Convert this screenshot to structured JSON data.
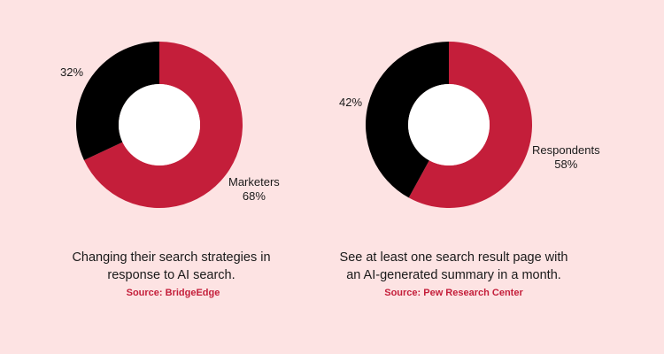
{
  "colors": {
    "background": "#fde3e3",
    "red": "#c41e3a",
    "black": "#000000",
    "hole": "#ffffff",
    "source_text": "#c41e3a"
  },
  "chart_data": [
    {
      "type": "pie",
      "title": "",
      "slices": [
        {
          "label": "Marketers",
          "value": 68,
          "display": "68%",
          "color": "#c41e3a"
        },
        {
          "label": "",
          "value": 32,
          "display": "32%",
          "color": "#000000"
        }
      ],
      "caption_lines": [
        "Changing their search strategies in",
        "response to AI search."
      ],
      "source": "Source: BridgeEdge"
    },
    {
      "type": "pie",
      "title": "",
      "slices": [
        {
          "label": "Respondents",
          "value": 58,
          "display": "58%",
          "color": "#c41e3a"
        },
        {
          "label": "",
          "value": 42,
          "display": "42%",
          "color": "#000000"
        }
      ],
      "caption_lines": [
        "See at least one search result page with",
        "an AI-generated summary in a month."
      ],
      "source": "Source: Pew Research Center"
    }
  ]
}
